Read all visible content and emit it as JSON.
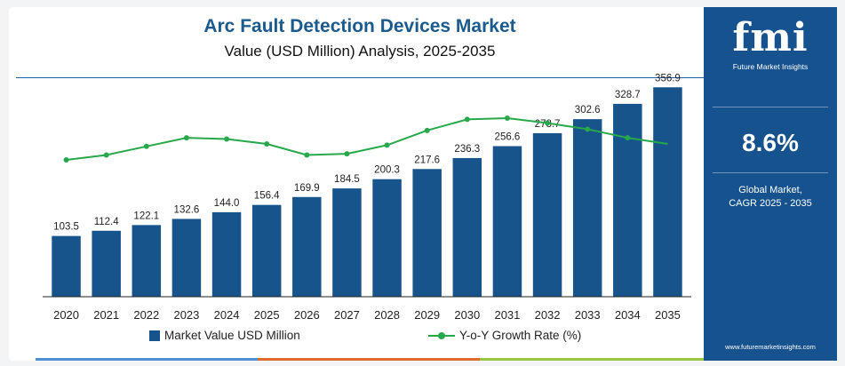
{
  "header": {
    "title": "Arc Fault Detection Devices Market",
    "subtitle": "Value (USD Million) Analysis, 2025-2035"
  },
  "chart_data": {
    "type": "bar",
    "categories": [
      "2020",
      "2021",
      "2022",
      "2023",
      "2024",
      "2025",
      "2026",
      "2027",
      "2028",
      "2029",
      "2030",
      "2031",
      "2032",
      "2033",
      "2034",
      "2035"
    ],
    "series": [
      {
        "name": "Market Value USD Million",
        "type": "bar",
        "color": "#17548c",
        "values": [
          103.5,
          112.4,
          122.1,
          132.6,
          144.0,
          156.4,
          169.9,
          184.5,
          200.3,
          217.6,
          236.3,
          256.6,
          278.7,
          302.6,
          328.7,
          356.9
        ],
        "value_labels": [
          "103.5",
          "112.4",
          "122.1",
          "132.6",
          "144.0",
          "156.4",
          "169.9",
          "184.5",
          "200.3",
          "217.6",
          "236.3",
          "256.6",
          "278.7",
          "302.6",
          "328.7",
          "356.9"
        ]
      },
      {
        "name": "Y-o-Y Growth Rate (%)",
        "type": "line",
        "color": "#27a84a",
        "values": [
          8.2,
          8.4,
          8.75,
          9.1,
          9.05,
          8.85,
          8.4,
          8.45,
          8.8,
          9.4,
          9.85,
          9.9,
          9.7,
          9.45,
          9.1,
          8.85
        ]
      }
    ],
    "ylim": [
      0,
      380
    ],
    "growth_ylim": [
      6.5,
      11.5
    ],
    "grid": false,
    "legend": "bottom"
  },
  "legend": {
    "bar_label": "Market Value USD Million",
    "line_label": "Y-o-Y Growth Rate (%)"
  },
  "panel": {
    "logo_text": "fmi",
    "logo_name": "Future Market Insights",
    "cagr_value": "8.6%",
    "cagr_label_line1": "Global Market,",
    "cagr_label_line2": "CAGR 2025 - 2035",
    "website": "www.futuremarketinsights.com"
  },
  "colors": {
    "brand_blue": "#16528e",
    "bar_blue": "#17548c",
    "growth_green": "#27a84a",
    "bottom_bar": [
      "#4f8fd6",
      "#e06a2b",
      "#9ac641"
    ]
  }
}
